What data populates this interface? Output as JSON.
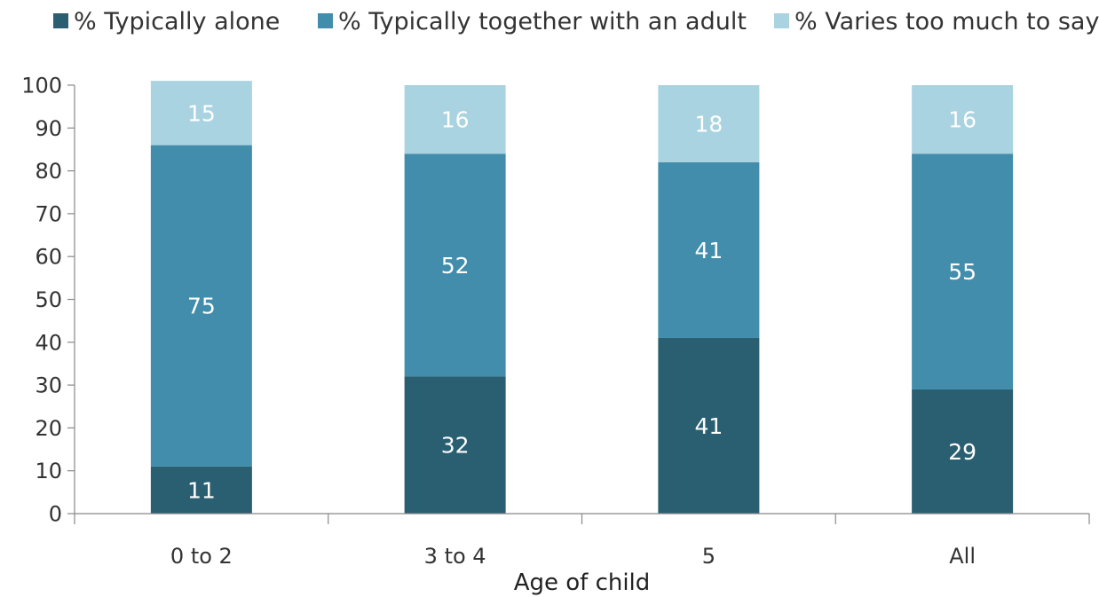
{
  "chart_data": {
    "type": "bar",
    "stacked": true,
    "categories": [
      "0 to 2",
      "3 to 4",
      "5",
      "All"
    ],
    "series": [
      {
        "name": "% Typically alone",
        "values": [
          11,
          32,
          41,
          29
        ],
        "color": "#2a5f72"
      },
      {
        "name": "% Typically together with an adult",
        "values": [
          75,
          52,
          41,
          55
        ],
        "color": "#418dab"
      },
      {
        "name": "% Varies too much to say",
        "values": [
          15,
          16,
          18,
          16
        ],
        "color": "#a9d3e0"
      }
    ],
    "title": "",
    "xlabel": "Age of child",
    "ylabel": "",
    "ylim": [
      0,
      100
    ],
    "yticks": [
      0,
      10,
      20,
      30,
      40,
      50,
      60,
      70,
      80,
      90,
      100
    ],
    "grid": false,
    "legend_position": "top",
    "data_label_color": "#ffffff",
    "axis_color": "#888888"
  }
}
